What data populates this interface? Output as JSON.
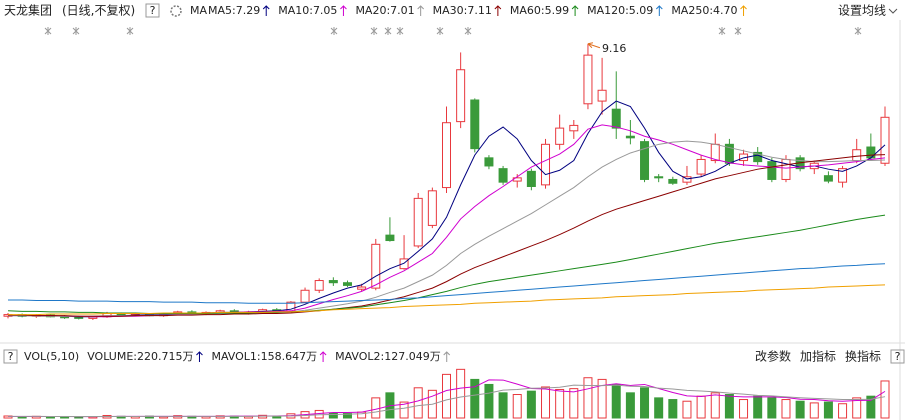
{
  "header": {
    "stock_name": "天龙集团",
    "period": "(日线,不复权)",
    "help": "?",
    "ma_label": "MA",
    "settings": "设置均线"
  },
  "volume_header": {
    "help": "?",
    "buttons": [
      "改参数",
      "加指标",
      "换指标"
    ],
    "help_right": "?"
  },
  "chart_data": [
    {
      "type": "candlestick",
      "up_color": "#e8383d",
      "down_color": "#3a9a3a",
      "ylim": [
        4.05,
        9.6
      ],
      "high_marker": 9.16,
      "ohlc": [
        [
          4.12,
          4.18,
          4.08,
          4.15
        ],
        [
          4.15,
          4.17,
          4.1,
          4.12
        ],
        [
          4.12,
          4.16,
          4.09,
          4.14
        ],
        [
          4.14,
          4.16,
          4.1,
          4.11
        ],
        [
          4.11,
          4.14,
          4.07,
          4.1
        ],
        [
          4.1,
          4.13,
          4.06,
          4.08
        ],
        [
          4.08,
          4.12,
          4.05,
          4.11
        ],
        [
          4.11,
          4.2,
          4.09,
          4.17
        ],
        [
          4.17,
          4.19,
          4.12,
          4.14
        ],
        [
          4.14,
          4.18,
          4.12,
          4.16
        ],
        [
          4.16,
          4.18,
          4.12,
          4.13
        ],
        [
          4.13,
          4.17,
          4.11,
          4.16
        ],
        [
          4.16,
          4.22,
          4.14,
          4.2
        ],
        [
          4.2,
          4.23,
          4.15,
          4.17
        ],
        [
          4.17,
          4.21,
          4.14,
          4.19
        ],
        [
          4.19,
          4.24,
          4.16,
          4.22
        ],
        [
          4.22,
          4.25,
          4.17,
          4.18
        ],
        [
          4.18,
          4.22,
          4.15,
          4.2
        ],
        [
          4.2,
          4.26,
          4.18,
          4.24
        ],
        [
          4.24,
          4.27,
          4.19,
          4.21
        ],
        [
          4.21,
          4.4,
          4.2,
          4.38
        ],
        [
          4.38,
          4.65,
          4.36,
          4.6
        ],
        [
          4.6,
          4.82,
          4.55,
          4.78
        ],
        [
          4.78,
          4.84,
          4.68,
          4.74
        ],
        [
          4.74,
          4.78,
          4.66,
          4.69
        ],
        [
          4.62,
          4.72,
          4.58,
          4.66
        ],
        [
          4.64,
          5.55,
          4.6,
          5.45
        ],
        [
          5.62,
          5.95,
          5.5,
          5.52
        ],
        [
          5.0,
          5.62,
          4.98,
          5.18
        ],
        [
          5.42,
          6.4,
          5.38,
          6.3
        ],
        [
          5.8,
          6.5,
          5.75,
          6.44
        ],
        [
          6.5,
          8.0,
          6.4,
          7.7
        ],
        [
          7.72,
          9.0,
          7.6,
          8.68
        ],
        [
          8.12,
          8.15,
          7.15,
          7.22
        ],
        [
          7.05,
          7.1,
          6.84,
          6.9
        ],
        [
          6.85,
          6.9,
          6.55,
          6.6
        ],
        [
          6.62,
          6.75,
          6.5,
          6.68
        ],
        [
          6.8,
          6.85,
          6.45,
          6.52
        ],
        [
          6.55,
          7.4,
          6.48,
          7.3
        ],
        [
          7.3,
          7.85,
          7.2,
          7.6
        ],
        [
          7.55,
          7.75,
          7.4,
          7.65
        ],
        [
          8.05,
          9.16,
          7.95,
          8.95
        ],
        [
          8.1,
          8.9,
          7.85,
          8.3
        ],
        [
          7.95,
          8.65,
          7.4,
          7.6
        ],
        [
          7.45,
          7.75,
          7.3,
          7.42
        ],
        [
          7.35,
          7.4,
          6.6,
          6.65
        ],
        [
          6.7,
          6.75,
          6.6,
          6.68
        ],
        [
          6.65,
          6.7,
          6.55,
          6.58
        ],
        [
          6.6,
          6.9,
          6.55,
          6.7
        ],
        [
          6.75,
          7.1,
          6.7,
          7.02
        ],
        [
          7.0,
          7.5,
          6.95,
          7.3
        ],
        [
          7.3,
          7.4,
          6.9,
          6.95
        ],
        [
          7.0,
          7.2,
          6.9,
          7.12
        ],
        [
          7.15,
          7.25,
          6.92,
          6.98
        ],
        [
          6.98,
          7.05,
          6.6,
          6.65
        ],
        [
          6.65,
          7.1,
          6.6,
          7.02
        ],
        [
          7.05,
          7.1,
          6.8,
          6.85
        ],
        [
          6.85,
          7.0,
          6.75,
          6.95
        ],
        [
          6.72,
          6.8,
          6.58,
          6.62
        ],
        [
          6.6,
          6.9,
          6.5,
          6.85
        ],
        [
          7.0,
          7.4,
          6.95,
          7.2
        ],
        [
          7.25,
          7.5,
          7.0,
          7.05
        ],
        [
          6.95,
          8.0,
          6.9,
          7.8
        ]
      ],
      "series": [
        {
          "name": "MA5:7.29",
          "color": "#000080",
          "values": [
            4.13,
            4.13,
            4.13,
            4.13,
            4.12,
            4.11,
            4.11,
            4.12,
            4.13,
            4.14,
            4.15,
            4.15,
            4.16,
            4.17,
            4.18,
            4.19,
            4.19,
            4.2,
            4.21,
            4.22,
            4.25,
            4.34,
            4.45,
            4.55,
            4.64,
            4.7,
            4.86,
            5.0,
            5.1,
            5.32,
            5.55,
            5.95,
            6.55,
            7.1,
            7.45,
            7.62,
            7.4,
            7.0,
            6.74,
            6.82,
            7.0,
            7.5,
            7.9,
            8.1,
            8.0,
            7.6,
            7.15,
            6.8,
            6.66,
            6.7,
            6.8,
            6.95,
            7.05,
            7.1,
            7.0,
            6.94,
            6.88,
            6.9,
            6.84,
            6.8,
            6.9,
            7.05,
            7.29
          ]
        },
        {
          "name": "MA10:7.05",
          "color": "#d000d0",
          "values": [
            4.14,
            4.14,
            4.13,
            4.13,
            4.12,
            4.12,
            4.11,
            4.11,
            4.12,
            4.12,
            4.13,
            4.14,
            4.15,
            4.16,
            4.17,
            4.18,
            4.19,
            4.2,
            4.2,
            4.21,
            4.22,
            4.27,
            4.35,
            4.43,
            4.5,
            4.58,
            4.7,
            4.84,
            4.96,
            5.12,
            5.28,
            5.58,
            5.92,
            6.15,
            6.35,
            6.52,
            6.7,
            6.88,
            7.0,
            7.12,
            7.3,
            7.58,
            7.66,
            7.62,
            7.55,
            7.45,
            7.38,
            7.3,
            7.2,
            7.1,
            7.02,
            6.96,
            6.92,
            6.9,
            6.88,
            6.86,
            6.88,
            6.9,
            6.92,
            6.95,
            6.98,
            7.02,
            7.05
          ]
        },
        {
          "name": "MA20:7.01",
          "color": "#999999",
          "values": [
            4.13,
            4.13,
            4.12,
            4.12,
            4.12,
            4.12,
            4.12,
            4.13,
            4.13,
            4.13,
            4.14,
            4.14,
            4.15,
            4.15,
            4.16,
            4.17,
            4.17,
            4.18,
            4.18,
            4.19,
            4.2,
            4.23,
            4.27,
            4.31,
            4.35,
            4.4,
            4.47,
            4.56,
            4.64,
            4.76,
            4.88,
            5.06,
            5.28,
            5.45,
            5.6,
            5.74,
            5.88,
            6.02,
            6.18,
            6.34,
            6.5,
            6.7,
            6.88,
            7.02,
            7.14,
            7.22,
            7.3,
            7.34,
            7.36,
            7.34,
            7.3,
            7.24,
            7.18,
            7.12,
            7.06,
            7.02,
            7.0,
            6.98,
            6.98,
            6.99,
            7.0,
            7.0,
            7.01
          ]
        },
        {
          "name": "MA30:7.11",
          "color": "#8b0000",
          "values": [
            4.14,
            4.14,
            4.13,
            4.13,
            4.13,
            4.12,
            4.12,
            4.12,
            4.12,
            4.13,
            4.13,
            4.13,
            4.14,
            4.14,
            4.15,
            4.15,
            4.16,
            4.16,
            4.17,
            4.17,
            4.18,
            4.2,
            4.22,
            4.25,
            4.28,
            4.31,
            4.36,
            4.42,
            4.48,
            4.56,
            4.64,
            4.76,
            4.9,
            5.02,
            5.12,
            5.22,
            5.32,
            5.42,
            5.52,
            5.63,
            5.75,
            5.88,
            6.0,
            6.1,
            6.18,
            6.26,
            6.34,
            6.42,
            6.5,
            6.58,
            6.66,
            6.72,
            6.78,
            6.84,
            6.88,
            6.92,
            6.96,
            6.99,
            7.02,
            7.05,
            7.08,
            7.1,
            7.11
          ]
        },
        {
          "name": "MA60:5.99",
          "color": "#1a8a1a",
          "values": [
            4.22,
            4.21,
            4.21,
            4.2,
            4.2,
            4.19,
            4.19,
            4.18,
            4.18,
            4.18,
            4.17,
            4.17,
            4.17,
            4.17,
            4.17,
            4.18,
            4.18,
            4.18,
            4.19,
            4.19,
            4.2,
            4.21,
            4.23,
            4.25,
            4.27,
            4.29,
            4.33,
            4.37,
            4.41,
            4.46,
            4.52,
            4.58,
            4.65,
            4.71,
            4.76,
            4.8,
            4.84,
            4.88,
            4.92,
            4.96,
            5.0,
            5.04,
            5.08,
            5.12,
            5.17,
            5.22,
            5.27,
            5.32,
            5.37,
            5.42,
            5.47,
            5.51,
            5.55,
            5.59,
            5.63,
            5.67,
            5.71,
            5.76,
            5.81,
            5.86,
            5.91,
            5.95,
            5.99
          ]
        },
        {
          "name": "MA120:5.09",
          "color": "#1f78c8",
          "values": [
            4.42,
            4.42,
            4.41,
            4.41,
            4.41,
            4.4,
            4.4,
            4.4,
            4.39,
            4.39,
            4.39,
            4.38,
            4.38,
            4.38,
            4.37,
            4.37,
            4.37,
            4.36,
            4.36,
            4.36,
            4.36,
            4.37,
            4.38,
            4.39,
            4.4,
            4.41,
            4.42,
            4.43,
            4.45,
            4.46,
            4.48,
            4.5,
            4.52,
            4.54,
            4.56,
            4.58,
            4.6,
            4.62,
            4.64,
            4.66,
            4.68,
            4.7,
            4.72,
            4.74,
            4.76,
            4.78,
            4.8,
            4.82,
            4.84,
            4.86,
            4.88,
            4.9,
            4.92,
            4.94,
            4.96,
            4.98,
            5.0,
            5.01,
            5.03,
            5.05,
            5.06,
            5.08,
            5.09
          ]
        },
        {
          "name": "MA250:4.70",
          "color": "#f0a000",
          "values": [
            4.15,
            4.15,
            4.15,
            4.16,
            4.16,
            4.16,
            4.16,
            4.17,
            4.17,
            4.17,
            4.17,
            4.18,
            4.18,
            4.18,
            4.18,
            4.19,
            4.19,
            4.19,
            4.19,
            4.2,
            4.2,
            4.21,
            4.22,
            4.24,
            4.25,
            4.26,
            4.27,
            4.28,
            4.3,
            4.31,
            4.32,
            4.33,
            4.34,
            4.36,
            4.37,
            4.38,
            4.39,
            4.4,
            4.42,
            4.43,
            4.44,
            4.45,
            4.46,
            4.48,
            4.49,
            4.5,
            4.51,
            4.52,
            4.54,
            4.55,
            4.56,
            4.57,
            4.58,
            4.6,
            4.61,
            4.62,
            4.63,
            4.64,
            4.66,
            4.67,
            4.68,
            4.69,
            4.7
          ]
        }
      ]
    },
    {
      "type": "volume",
      "title": "VOL(5,10)",
      "ylim": [
        0,
        298
      ],
      "values": [
        12,
        8,
        10,
        7,
        9,
        6,
        8,
        15,
        10,
        9,
        11,
        8,
        14,
        10,
        9,
        13,
        11,
        10,
        16,
        12,
        25,
        38,
        45,
        30,
        28,
        35,
        120,
        150,
        95,
        180,
        165,
        260,
        290,
        230,
        200,
        150,
        140,
        160,
        185,
        170,
        175,
        240,
        230,
        200,
        150,
        180,
        120,
        110,
        100,
        130,
        150,
        140,
        110,
        130,
        120,
        110,
        100,
        90,
        95,
        85,
        120,
        130,
        220.715
      ],
      "value_label": "VOLUME:220.715万",
      "value_label_color": "#000080",
      "series": [
        {
          "name": "MAVOL1:158.647万",
          "color": "#d000d0",
          "values": [
            9,
            9,
            9,
            9,
            9,
            8,
            8,
            9,
            10,
            10,
            10,
            10,
            10,
            10,
            10,
            10,
            11,
            11,
            12,
            12,
            14,
            20,
            27,
            33,
            33,
            35,
            52,
            73,
            82,
            102,
            130,
            164,
            178,
            186,
            227,
            226,
            202,
            176,
            173,
            161,
            156,
            174,
            194,
            204,
            194,
            200,
            176,
            152,
            132,
            128,
            138,
            130,
            126,
            126,
            126,
            122,
            112,
            110,
            103,
            100,
            104,
            106,
            158.647
          ]
        },
        {
          "name": "MAVOL2:127.049万",
          "color": "#999999",
          "values": [
            10,
            10,
            10,
            9,
            9,
            9,
            9,
            9,
            9,
            9,
            10,
            10,
            10,
            10,
            10,
            10,
            10,
            10,
            11,
            11,
            12,
            15,
            19,
            21,
            23,
            25,
            36,
            50,
            58,
            74,
            82,
            108,
            125,
            136,
            148,
            166,
            170,
            177,
            179,
            183,
            196,
            194,
            193,
            196,
            189,
            188,
            178,
            173,
            165,
            161,
            156,
            148,
            142,
            135,
            132,
            126,
            121,
            117,
            114,
            110,
            110,
            112,
            127.049
          ]
        }
      ]
    }
  ]
}
